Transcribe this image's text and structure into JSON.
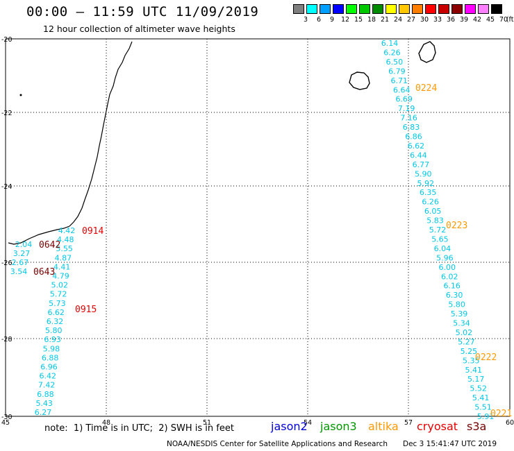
{
  "header": {
    "title": "00:00 – 11:59 UTC 11/09/2019",
    "subtitle": "12 hour collection of altimeter wave heights"
  },
  "legend": {
    "colors": [
      "#7f7f7f",
      "#00ffff",
      "#00a0ff",
      "#0000ff",
      "#00ff00",
      "#00c800",
      "#008c00",
      "#ffff00",
      "#ffc800",
      "#ff7f00",
      "#ff0000",
      "#c80000",
      "#8c0000",
      "#ff00ff",
      "#ff80ff",
      "#000000"
    ],
    "ticks": [
      "3",
      "6",
      "9",
      "12",
      "15",
      "18",
      "21",
      "24",
      "27",
      "30",
      "33",
      "36",
      "39",
      "42",
      "45",
      "70"
    ],
    "unit": "(ft)"
  },
  "axes": {
    "x_ticks": [
      "45",
      "48",
      "51",
      "54",
      "57",
      "60"
    ],
    "y_ticks": [
      "-20",
      "-22",
      "-24",
      "-26",
      "-28",
      "-30"
    ]
  },
  "swh_values_west": {
    "color": "#00c8e6",
    "values": [
      "4.42",
      "4.48",
      "5.55",
      "4.87",
      "4.41",
      "4.79",
      "5.02",
      "5.72",
      "5.73",
      "6.62",
      "6.32",
      "5.80",
      "6.93",
      "5.98",
      "6.88",
      "6.96",
      "6.42",
      "7.42",
      "6.88",
      "5.43",
      "6.27"
    ],
    "extra": [
      "2.04",
      "3.27",
      "2.67",
      "3.54"
    ]
  },
  "swh_values_east": {
    "values": [
      "6.14",
      "6.26",
      "6.50",
      "6.79",
      "6.71",
      "6.64",
      "6.69",
      "7.19",
      "7.16",
      "6.83",
      "6.86",
      "6.62",
      "6.44",
      "6.77",
      "5.90",
      "5.92",
      "6.35",
      "6.26",
      "6.05",
      "5.83",
      "5.72",
      "5.65",
      "6.04",
      "5.96",
      "6.00",
      "6.02",
      "6.16",
      "6.30",
      "5.80",
      "5.39",
      "5.34",
      "5.02",
      "5.27",
      "5.25",
      "5.35",
      "5.41",
      "5.17",
      "5.52",
      "5.41",
      "5.51",
      "5.91"
    ]
  },
  "time_labels": [
    {
      "text": "0914",
      "color": "#e60000"
    },
    {
      "text": "0642",
      "color": "#780000"
    },
    {
      "text": "0643",
      "color": "#780000"
    },
    {
      "text": "0915",
      "color": "#e60000"
    },
    {
      "text": "0224",
      "color": "#ff9900"
    },
    {
      "text": "0223",
      "color": "#ff9900"
    },
    {
      "text": "0222",
      "color": "#ff9900"
    },
    {
      "text": "0221",
      "color": "#ff9900"
    }
  ],
  "footer": {
    "note": "note:  1) Time is in UTC;  2) SWH is in feet",
    "satellites": [
      {
        "name": "jason2",
        "color": "#0000dc"
      },
      {
        "name": "jason3",
        "color": "#009600"
      },
      {
        "name": "altika",
        "color": "#ff9900"
      },
      {
        "name": "cryosat",
        "color": "#e60000"
      },
      {
        "name": "s3a",
        "color": "#780000"
      }
    ],
    "credit": "NOAA/NESDIS Center for Satellite Applications and Research",
    "timestamp": "Dec  3 15:41:47 UTC 2019"
  }
}
